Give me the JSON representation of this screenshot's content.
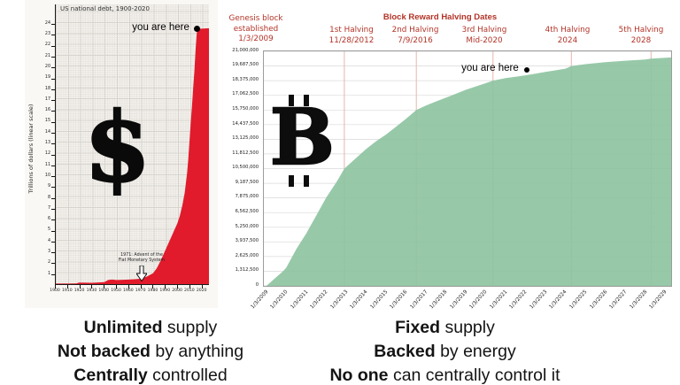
{
  "left_chart": {
    "title": "US national debt, 1900-2020",
    "y_axis_title": "Trillions of dollars (linear scale)",
    "currency_symbol": "$",
    "you_are_here": "you are here",
    "annotation": {
      "line1": "1971: Advent of the",
      "line2": "Fiat Monetary System"
    }
  },
  "right_chart": {
    "header_title": "Block Reward Halving Dates",
    "symbol_letter": "B",
    "you_are_here": "you are here",
    "halvings": [
      {
        "lines": [
          "Genesis block",
          "established",
          "1/3/2009"
        ]
      },
      {
        "lines": [
          "1st Halving",
          "11/28/2012"
        ]
      },
      {
        "lines": [
          "2nd Halving",
          "7/9/2016"
        ]
      },
      {
        "lines": [
          "3rd Halving",
          "Mid-2020"
        ]
      },
      {
        "lines": [
          "4th Halving",
          "2024"
        ]
      },
      {
        "lines": [
          "5th Halving",
          "2028"
        ]
      }
    ]
  },
  "captions": {
    "left": [
      {
        "bold": "Unlimited",
        "rest": " supply"
      },
      {
        "bold": "Not backed",
        "rest": " by anything"
      },
      {
        "bold": "Centrally",
        "rest": " controlled"
      }
    ],
    "right": [
      {
        "bold": "Fixed",
        "rest": " supply"
      },
      {
        "bold": "Backed",
        "rest": " by energy"
      },
      {
        "bold": "No one",
        "rest": " can centrally control it"
      }
    ]
  },
  "colors": {
    "debt_red": "#e11b2c",
    "btc_green": "#8cc3a0",
    "halving_text_red": "#b23327",
    "halving_line_pink": "#e5b6ad",
    "gridline_gray": "#d9d9d9"
  },
  "chart_data": [
    {
      "type": "area",
      "title": "US national debt, 1900-2020",
      "xlabel": "",
      "ylabel": "Trillions of dollars (linear scale)",
      "xlim": [
        1900,
        2026
      ],
      "ylim": [
        0,
        25.8
      ],
      "color": "#e11b2c",
      "fill_opacity": 1,
      "tick_marks": true,
      "rotate_x": false,
      "grid_h": false,
      "ylabel_w": 14,
      "ylabel_size": 4.8,
      "xlabel_size": 4.6,
      "points": [
        [
          1900,
          0.05
        ],
        [
          1910,
          0.05
        ],
        [
          1917,
          0.06
        ],
        [
          1919,
          0.14
        ],
        [
          1930,
          0.12
        ],
        [
          1940,
          0.18
        ],
        [
          1943,
          0.38
        ],
        [
          1946,
          0.42
        ],
        [
          1950,
          0.38
        ],
        [
          1955,
          0.4
        ],
        [
          1960,
          0.42
        ],
        [
          1965,
          0.45
        ],
        [
          1970,
          0.5
        ],
        [
          1971,
          0.52
        ],
        [
          1975,
          0.7
        ],
        [
          1980,
          1.0
        ],
        [
          1983,
          1.45
        ],
        [
          1986,
          2.1
        ],
        [
          1989,
          2.85
        ],
        [
          1992,
          3.6
        ],
        [
          1995,
          4.35
        ],
        [
          1998,
          5.1
        ],
        [
          2000,
          5.6
        ],
        [
          2002,
          6.3
        ],
        [
          2004,
          7.2
        ],
        [
          2006,
          8.4
        ],
        [
          2008,
          10.2
        ],
        [
          2009,
          11.5
        ],
        [
          2010,
          13.2
        ],
        [
          2011,
          14.9
        ],
        [
          2012,
          16.4
        ],
        [
          2013,
          18.0
        ],
        [
          2014,
          19.6
        ],
        [
          2015,
          21.6
        ],
        [
          2016,
          23.2
        ],
        [
          2017,
          23.45
        ],
        [
          2018,
          23.55
        ],
        [
          2026,
          23.6
        ]
      ],
      "x_ticks": [
        {
          "v": 1900,
          "label": "1900"
        },
        {
          "v": 1910,
          "label": "1910"
        },
        {
          "v": 1920,
          "label": "1920"
        },
        {
          "v": 1930,
          "label": "1930"
        },
        {
          "v": 1940,
          "label": "1940"
        },
        {
          "v": 1950,
          "label": "1950"
        },
        {
          "v": 1960,
          "label": "1960"
        },
        {
          "v": 1970,
          "label": "1970"
        },
        {
          "v": 1980,
          "label": "1980"
        },
        {
          "v": 1990,
          "label": "1990"
        },
        {
          "v": 2000,
          "label": "2000"
        },
        {
          "v": 2010,
          "label": "2010"
        },
        {
          "v": 2020,
          "label": "2020"
        }
      ],
      "y_ticks": [
        {
          "v": 1,
          "label": "1"
        },
        {
          "v": 2,
          "label": "2"
        },
        {
          "v": 3,
          "label": "3"
        },
        {
          "v": 4,
          "label": "4"
        },
        {
          "v": 5,
          "label": "5"
        },
        {
          "v": 6,
          "label": "6"
        },
        {
          "v": 7,
          "label": "7"
        },
        {
          "v": 8,
          "label": "8"
        },
        {
          "v": 9,
          "label": "9"
        },
        {
          "v": 10,
          "label": "10"
        },
        {
          "v": 11,
          "label": "11"
        },
        {
          "v": 12,
          "label": "12"
        },
        {
          "v": 13,
          "label": "13"
        },
        {
          "v": 14,
          "label": "14"
        },
        {
          "v": 15,
          "label": "15"
        },
        {
          "v": 16,
          "label": "16"
        },
        {
          "v": 17,
          "label": "17"
        },
        {
          "v": 18,
          "label": "18"
        },
        {
          "v": 19,
          "label": "19"
        },
        {
          "v": 20,
          "label": "20"
        },
        {
          "v": 21,
          "label": "21"
        },
        {
          "v": 22,
          "label": "22"
        },
        {
          "v": 23,
          "label": "23"
        },
        {
          "v": 24,
          "label": "24"
        }
      ],
      "marker": {
        "x": 2016.5,
        "y": 23.55,
        "r": 3.5,
        "label": "you are here"
      },
      "annotation_1971": {
        "x": 1971,
        "text": "1971: Advent of the Fiat Monetary System"
      }
    },
    {
      "type": "area",
      "title": "Block Reward Halving Dates",
      "xlabel": "",
      "ylabel": "",
      "xlim": [
        2008.87,
        2029.31
      ],
      "ylim": [
        0,
        21000000
      ],
      "color": "#8cc3a0",
      "fill_opacity": 0.9,
      "tick_marks": false,
      "rotate_x": true,
      "grid_h": true,
      "grid_color": "#d9d9d9",
      "vline_color": "#e5b6ad",
      "ylabel_w": 50,
      "ylabel_size": 5.2,
      "xlabel_size": 5.8,
      "halving_lines": [
        2012.91,
        2016.52,
        2020.37,
        2024.3,
        2028.3
      ],
      "points": [
        [
          2009,
          0
        ],
        [
          2009.85,
          1350000
        ],
        [
          2010,
          1640000
        ],
        [
          2010.5,
          3300000
        ],
        [
          2011,
          4700000
        ],
        [
          2011.5,
          6300000
        ],
        [
          2012,
          7900000
        ],
        [
          2012.5,
          9250000
        ],
        [
          2012.91,
          10500000
        ],
        [
          2013.5,
          11450000
        ],
        [
          2014,
          12250000
        ],
        [
          2014.5,
          12950000
        ],
        [
          2015,
          13550000
        ],
        [
          2015.5,
          14250000
        ],
        [
          2016,
          14950000
        ],
        [
          2016.52,
          15750000
        ],
        [
          2017,
          16150000
        ],
        [
          2017.5,
          16500000
        ],
        [
          2018,
          16850000
        ],
        [
          2018.5,
          17200000
        ],
        [
          2019,
          17550000
        ],
        [
          2019.5,
          17850000
        ],
        [
          2020,
          18150000
        ],
        [
          2020.37,
          18375000
        ],
        [
          2021,
          18600000
        ],
        [
          2021.5,
          18720000
        ],
        [
          2022,
          18850000
        ],
        [
          2022.5,
          19000000
        ],
        [
          2023,
          19150000
        ],
        [
          2023.5,
          19300000
        ],
        [
          2024,
          19450000
        ],
        [
          2024.3,
          19687500
        ],
        [
          2025,
          19850000
        ],
        [
          2026,
          20030000
        ],
        [
          2027,
          20160000
        ],
        [
          2028,
          20270000
        ],
        [
          2028.3,
          20340000
        ],
        [
          2029.31,
          20450000
        ]
      ],
      "x_ticks": [
        {
          "v": 2009,
          "label": "1/3/2009"
        },
        {
          "v": 2010,
          "label": "1/3/2010"
        },
        {
          "v": 2011,
          "label": "1/3/2011"
        },
        {
          "v": 2012,
          "label": "1/3/2012"
        },
        {
          "v": 2013,
          "label": "1/3/2013"
        },
        {
          "v": 2014,
          "label": "1/3/2014"
        },
        {
          "v": 2015,
          "label": "1/3/2015"
        },
        {
          "v": 2016,
          "label": "1/3/2016"
        },
        {
          "v": 2017,
          "label": "1/3/2017"
        },
        {
          "v": 2018,
          "label": "1/3/2018"
        },
        {
          "v": 2019,
          "label": "1/3/2019"
        },
        {
          "v": 2020,
          "label": "1/3/2020"
        },
        {
          "v": 2021,
          "label": "1/3/2021"
        },
        {
          "v": 2022,
          "label": "1/3/2022"
        },
        {
          "v": 2023,
          "label": "1/3/2023"
        },
        {
          "v": 2024,
          "label": "1/3/2024"
        },
        {
          "v": 2025,
          "label": "1/3/2025"
        },
        {
          "v": 2026,
          "label": "1/3/2026"
        },
        {
          "v": 2027,
          "label": "1/3/2027"
        },
        {
          "v": 2028,
          "label": "1/3/2028"
        },
        {
          "v": 2029,
          "label": "1/3/2029"
        }
      ],
      "y_ticks": [
        {
          "v": 21000000,
          "label": "21,000,000"
        },
        {
          "v": 19687500,
          "label": "19,687,500"
        },
        {
          "v": 18375000,
          "label": "18,375,000"
        },
        {
          "v": 17062500,
          "label": "17,062,500"
        },
        {
          "v": 15750000,
          "label": "15,750,000"
        },
        {
          "v": 14437500,
          "label": "14,437,500"
        },
        {
          "v": 13125000,
          "label": "13,125,000"
        },
        {
          "v": 11812500,
          "label": "11,812,500"
        },
        {
          "v": 10500000,
          "label": "10,500,000"
        },
        {
          "v": 9187500,
          "label": "9,187,500"
        },
        {
          "v": 7875000,
          "label": "7,875,000"
        },
        {
          "v": 6562500,
          "label": "6,562,500"
        },
        {
          "v": 5250000,
          "label": "5,250,000"
        },
        {
          "v": 3937500,
          "label": "3,937,500"
        },
        {
          "v": 2625000,
          "label": "2,625,000"
        },
        {
          "v": 1312500,
          "label": "1,312,500"
        },
        {
          "v": 0,
          "label": "0"
        }
      ],
      "marker": {
        "x": 2022.1,
        "y": 19250000,
        "r": 3,
        "label": "you are here"
      }
    }
  ]
}
